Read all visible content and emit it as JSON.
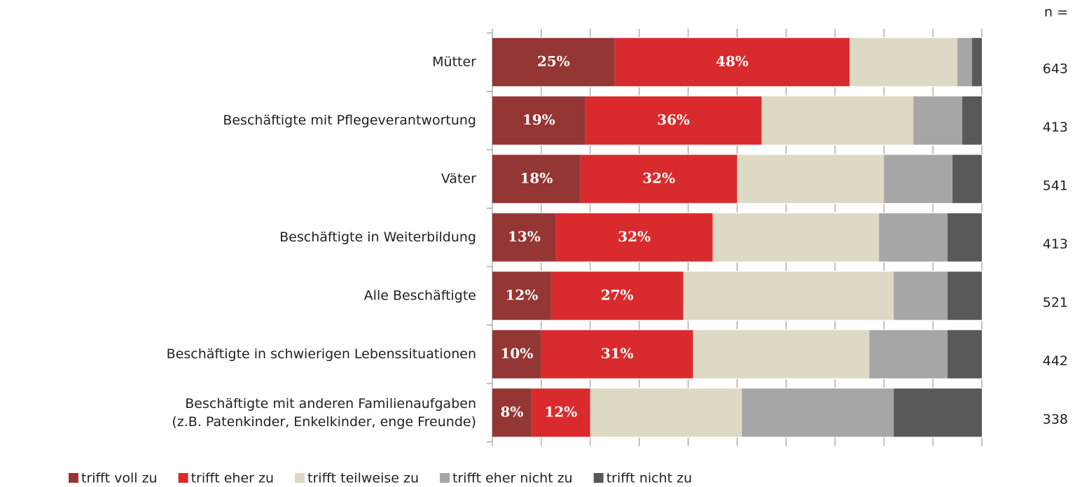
{
  "chart_data": {
    "type": "stacked_barh",
    "categories": [
      "Mütter",
      "Beschäftigte mit Pflegeverantwortung",
      "Väter",
      "Beschäftigte in Weiterbildung",
      "Alle Beschäftigte",
      "Beschäftigte in schwierigen Lebenssituationen",
      "Beschäftigte mit anderen Familienaufgaben\n(z.B. Patenkinder, Enkelkinder, enge Freunde)"
    ],
    "series": [
      {
        "name": "trifft voll zu",
        "color": "#943634",
        "values": [
          25,
          19,
          18,
          13,
          12,
          10,
          8
        ],
        "value_labels": [
          "25%",
          "19%",
          "18%",
          "13%",
          "12%",
          "10%",
          "8%"
        ]
      },
      {
        "name": "trifft eher zu",
        "color": "#d92b2e",
        "values": [
          48,
          36,
          32,
          32,
          27,
          31,
          12
        ],
        "value_labels": [
          "48%",
          "36%",
          "32%",
          "32%",
          "27%",
          "31%",
          "12%"
        ]
      },
      {
        "name": "trifft teilweise zu",
        "color": "#ddd9c4",
        "values": [
          22,
          31,
          30,
          34,
          43,
          36,
          31
        ]
      },
      {
        "name": "trifft eher nicht zu",
        "color": "#a6a6a6",
        "values": [
          3,
          10,
          14,
          14,
          11,
          16,
          31
        ]
      },
      {
        "name": "trifft nicht zu",
        "color": "#595959",
        "values": [
          2,
          4,
          6,
          7,
          7,
          7,
          18
        ]
      }
    ],
    "n_label": "n =",
    "n": [
      643,
      413,
      541,
      413,
      521,
      442,
      338
    ],
    "xlim": [
      0,
      100
    ],
    "xticks": [
      0,
      10,
      20,
      30,
      40,
      50,
      60,
      70,
      80,
      90,
      100
    ]
  }
}
